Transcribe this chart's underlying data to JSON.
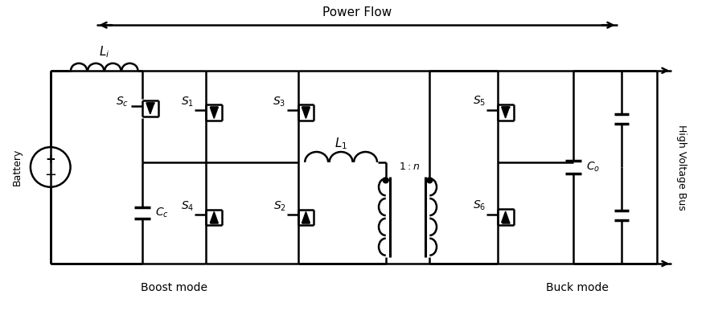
{
  "title": "Power Flow",
  "bg_color": "#ffffff",
  "boost_mode_label": "Boost mode",
  "buck_mode_label": "Buck mode",
  "battery_label": "Battery",
  "hv_bus_label": "High Voltage Bus",
  "figsize": [
    8.83,
    3.87
  ],
  "dpi": 100
}
